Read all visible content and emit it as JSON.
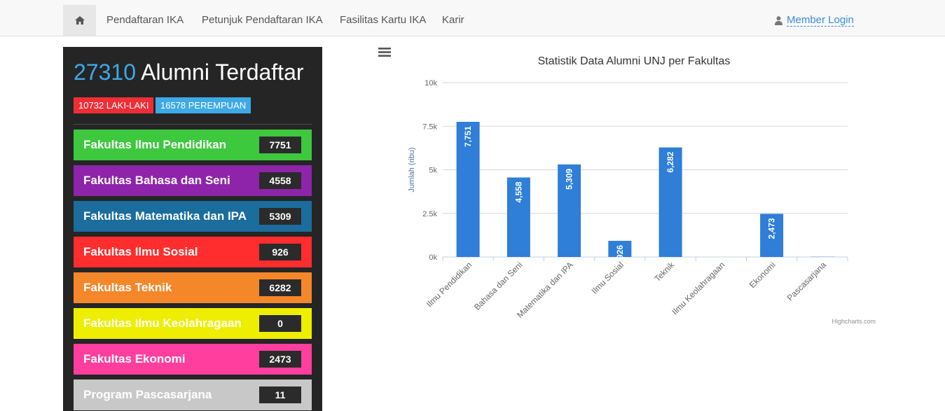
{
  "nav": {
    "items": [
      {
        "label": "Pendaftaran IKA"
      },
      {
        "label": "Petunjuk Pendaftaran IKA"
      },
      {
        "label": "Fasilitas Kartu IKA"
      },
      {
        "label": "Karir"
      }
    ],
    "member_login": "Member Login"
  },
  "summary": {
    "total": "27310",
    "title": "Alumni Terdaftar",
    "male_label": "10732 LAKI-LAKI",
    "female_label": "16578 PEREMPUAN"
  },
  "faculties": [
    {
      "name": "Fakultas Ilmu Pendidikan",
      "count": "7751",
      "color": "#3ec83e"
    },
    {
      "name": "Fakultas Bahasa dan Seni",
      "count": "4558",
      "color": "#8e24aa"
    },
    {
      "name": "Fakultas Matematika dan IPA",
      "count": "5309",
      "color": "#1a6d9c"
    },
    {
      "name": "Fakultas Ilmu Sosial",
      "count": "926",
      "color": "#ff2d2d"
    },
    {
      "name": "Fakultas Teknik",
      "count": "6282",
      "color": "#f5872b"
    },
    {
      "name": "Fakultas Ilmu Keolahragaan",
      "count": "0",
      "color": "#eeee00"
    },
    {
      "name": "Fakultas Ekonomi",
      "count": "2473",
      "color": "#ff3e9e"
    },
    {
      "name": "Program Pascasarjana",
      "count": "11",
      "color": "#c8c8c8"
    }
  ],
  "chart_data": {
    "type": "bar",
    "title": "Statistik Data Alumni UNJ per Fakultas",
    "xlabel": "",
    "ylabel": "Jumlah (ribu)",
    "categories": [
      "Ilmu Pendidikan",
      "Bahasa dan Seni",
      "Matematika dan IPA",
      "Ilmu Sosial",
      "Teknik",
      "Ilmu Keolahragaan",
      "Ekonomi",
      "Pascasarjana"
    ],
    "values": [
      7751,
      4558,
      5309,
      926,
      6282,
      0,
      2473,
      11
    ],
    "data_labels": [
      "7,751",
      "4,558",
      "5,309",
      "926",
      "6,282",
      "",
      "2,473",
      ""
    ],
    "ylim": [
      0,
      10000
    ],
    "yticks": [
      0,
      2500,
      5000,
      7500,
      10000
    ],
    "ytick_labels": [
      "0k",
      "2.5k",
      "5k",
      "7.5k",
      "10k"
    ],
    "bar_color": "#2f7ed8",
    "grid": true,
    "credit": "Highcharts.com"
  }
}
